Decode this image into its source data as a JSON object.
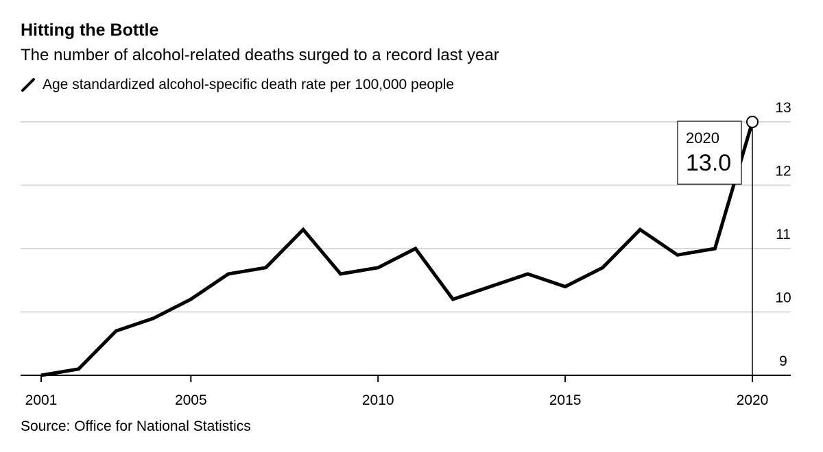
{
  "header": {
    "title": "Hitting the Bottle",
    "subtitle": "The number of alcohol-related deaths surged to a record last year"
  },
  "legend": {
    "label": "Age standardized alcohol-specific death rate per 100,000 people"
  },
  "footer": {
    "source": "Source: Office for National Statistics"
  },
  "colors": {
    "line": "#000000",
    "grid": "#d9d9d9",
    "axis": "#000000"
  },
  "chart_data": {
    "type": "line",
    "title": "Hitting the Bottle",
    "subtitle": "The number of alcohol-related deaths surged to a record last year",
    "xlabel": "",
    "ylabel": "",
    "x": [
      2001,
      2002,
      2003,
      2004,
      2005,
      2006,
      2007,
      2008,
      2009,
      2010,
      2011,
      2012,
      2013,
      2014,
      2015,
      2016,
      2017,
      2018,
      2019,
      2020
    ],
    "series": [
      {
        "name": "Age standardized alcohol-specific death rate per 100,000 people",
        "values": [
          9.0,
          9.1,
          9.7,
          9.9,
          10.2,
          10.6,
          10.7,
          11.3,
          10.6,
          10.7,
          11.0,
          10.2,
          10.4,
          10.6,
          10.4,
          10.7,
          11.3,
          10.9,
          11.0,
          13.0
        ]
      }
    ],
    "xlim": [
      2001,
      2021
    ],
    "ylim": [
      9,
      13
    ],
    "x_ticks": [
      2001,
      2005,
      2010,
      2015,
      2020
    ],
    "y_ticks": [
      9,
      10,
      11,
      12,
      13
    ],
    "grid": true,
    "y_axis_side": "right",
    "annotation": {
      "year_label": "2020",
      "value_label": "13.0"
    }
  }
}
